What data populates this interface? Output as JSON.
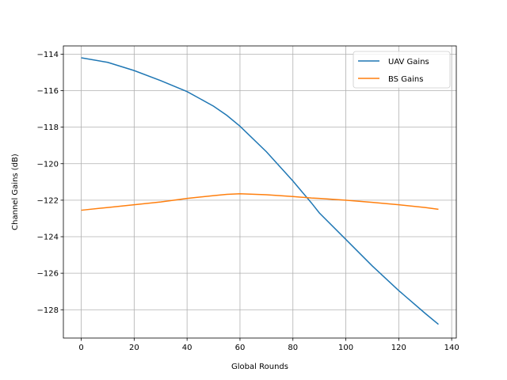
{
  "chart_data": {
    "type": "line",
    "title": "",
    "xlabel": "Global Rounds",
    "ylabel": "Channel Gains (dB)",
    "xlim": [
      -6.75,
      141.75
    ],
    "ylim": [
      -129.55,
      -113.55
    ],
    "xticks": [
      0,
      20,
      40,
      60,
      80,
      100,
      120,
      140
    ],
    "yticks": [
      -128,
      -126,
      -124,
      -122,
      -120,
      -118,
      -116,
      -114
    ],
    "xtick_labels": [
      "0",
      "20",
      "40",
      "60",
      "80",
      "100",
      "120",
      "140"
    ],
    "ytick_labels": [
      "−128",
      "−126",
      "−124",
      "−122",
      "−120",
      "−118",
      "−116",
      "−114"
    ],
    "grid": true,
    "legend_position": "top-right",
    "x": [
      0,
      10,
      20,
      30,
      40,
      50,
      55,
      60,
      70,
      80,
      87,
      90,
      100,
      110,
      120,
      130,
      135
    ],
    "series": [
      {
        "name": "UAV Gains",
        "color": "#1f77b4",
        "values": [
          -114.2,
          -114.45,
          -114.9,
          -115.45,
          -116.05,
          -116.85,
          -117.35,
          -117.95,
          -119.35,
          -120.95,
          -122.15,
          -122.7,
          -124.15,
          -125.6,
          -126.95,
          -128.2,
          -128.8
        ]
      },
      {
        "name": "BS Gains",
        "color": "#ff7f0e",
        "values": [
          -122.55,
          -122.4,
          -122.25,
          -122.1,
          -121.9,
          -121.75,
          -121.68,
          -121.65,
          -121.7,
          -121.8,
          -121.88,
          -121.9,
          -122.0,
          -122.12,
          -122.25,
          -122.4,
          -122.5
        ]
      }
    ]
  }
}
